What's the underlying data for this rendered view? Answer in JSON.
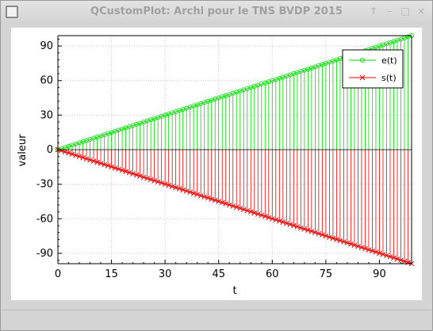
{
  "window": {
    "title": "QCustomPlot: Archi pour le TNS BVDP 2015",
    "icon": "app-icon",
    "buttons": [
      "↑",
      "–",
      "□",
      "×"
    ]
  },
  "chart_data": {
    "type": "line",
    "title": "",
    "xlabel": "t",
    "ylabel": "valeur",
    "xlim": [
      0,
      99
    ],
    "ylim": [
      -99,
      99
    ],
    "x_ticks": [
      0,
      15,
      30,
      45,
      60,
      75,
      90
    ],
    "y_ticks": [
      90,
      60,
      30,
      0,
      -30,
      -60,
      -90
    ],
    "grid": true,
    "legend_position": "top-right",
    "style": "impulse-with-markers",
    "x": "0..99 step 1",
    "series": [
      {
        "name": "e(t)",
        "color": "#00dd00",
        "marker": "circle",
        "formula": "y = x",
        "values_start": 0,
        "values_end": 99
      },
      {
        "name": "s(t)",
        "color": "#ee0000",
        "marker": "cross",
        "formula": "y = -x",
        "values_start": 0,
        "values_end": -99
      }
    ]
  }
}
